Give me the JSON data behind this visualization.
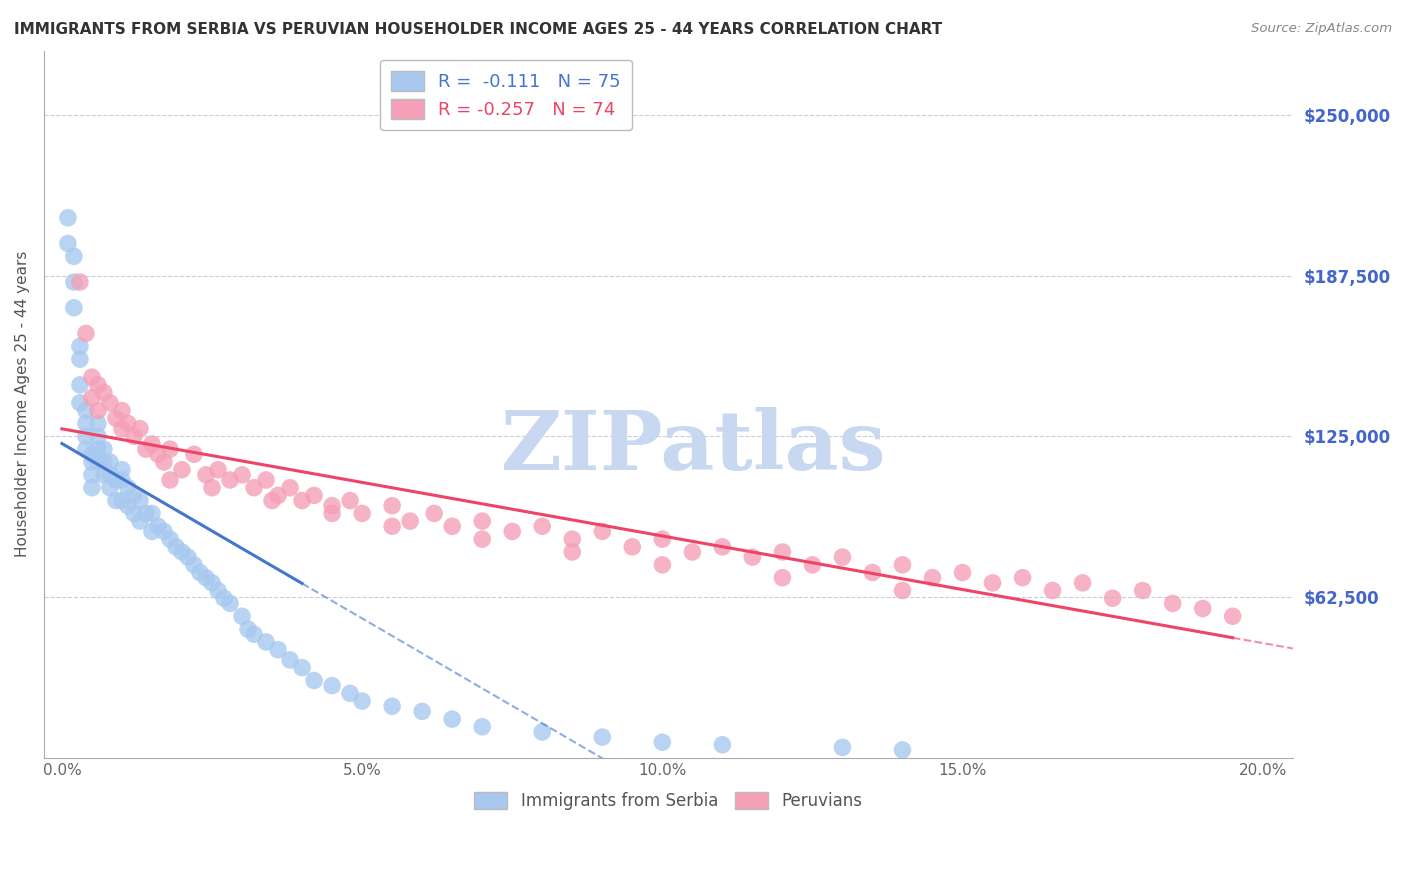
{
  "title": "IMMIGRANTS FROM SERBIA VS PERUVIAN HOUSEHOLDER INCOME AGES 25 - 44 YEARS CORRELATION CHART",
  "source": "Source: ZipAtlas.com",
  "ylabel": "Householder Income Ages 25 - 44 years",
  "xlabel_ticks": [
    "0.0%",
    "5.0%",
    "10.0%",
    "15.0%",
    "20.0%"
  ],
  "xlabel_vals": [
    0.0,
    0.05,
    0.1,
    0.15,
    0.2
  ],
  "ytick_labels": [
    "$62,500",
    "$125,000",
    "$187,500",
    "$250,000"
  ],
  "ytick_vals": [
    62500,
    125000,
    187500,
    250000
  ],
  "ylim": [
    0,
    275000
  ],
  "xlim": [
    -0.003,
    0.205
  ],
  "serbia_color": "#A8C8F0",
  "peru_color": "#F4A0B8",
  "serbia_line_color": "#4477CC",
  "peru_line_color": "#EE4466",
  "legend_box_color_serbia": "#A8C8F0",
  "legend_box_color_peru": "#F4A0B8",
  "r_serbia": -0.111,
  "n_serbia": 75,
  "r_peru": -0.257,
  "n_peru": 74,
  "background_color": "#FFFFFF",
  "grid_color": "#CCCCDD",
  "watermark_text": "ZIPatlas",
  "watermark_color": "#C8D8F0",
  "right_label_color": "#4466CC",
  "serbia_scatter_x": [
    0.001,
    0.001,
    0.002,
    0.002,
    0.002,
    0.003,
    0.003,
    0.003,
    0.003,
    0.004,
    0.004,
    0.004,
    0.004,
    0.005,
    0.005,
    0.005,
    0.005,
    0.006,
    0.006,
    0.006,
    0.006,
    0.007,
    0.007,
    0.007,
    0.008,
    0.008,
    0.008,
    0.009,
    0.009,
    0.01,
    0.01,
    0.01,
    0.011,
    0.011,
    0.012,
    0.012,
    0.013,
    0.013,
    0.014,
    0.015,
    0.015,
    0.016,
    0.017,
    0.018,
    0.019,
    0.02,
    0.021,
    0.022,
    0.023,
    0.024,
    0.025,
    0.026,
    0.027,
    0.028,
    0.03,
    0.031,
    0.032,
    0.034,
    0.036,
    0.038,
    0.04,
    0.042,
    0.045,
    0.048,
    0.05,
    0.055,
    0.06,
    0.065,
    0.07,
    0.08,
    0.09,
    0.1,
    0.11,
    0.13,
    0.14
  ],
  "serbia_scatter_y": [
    210000,
    200000,
    195000,
    185000,
    175000,
    160000,
    155000,
    145000,
    138000,
    135000,
    130000,
    125000,
    120000,
    118000,
    115000,
    110000,
    105000,
    130000,
    125000,
    120000,
    115000,
    120000,
    115000,
    110000,
    115000,
    110000,
    105000,
    108000,
    100000,
    112000,
    108000,
    100000,
    105000,
    98000,
    102000,
    95000,
    100000,
    92000,
    95000,
    95000,
    88000,
    90000,
    88000,
    85000,
    82000,
    80000,
    78000,
    75000,
    72000,
    70000,
    68000,
    65000,
    62000,
    60000,
    55000,
    50000,
    48000,
    45000,
    42000,
    38000,
    35000,
    30000,
    28000,
    25000,
    22000,
    20000,
    18000,
    15000,
    12000,
    10000,
    8000,
    6000,
    5000,
    4000,
    3000
  ],
  "peru_scatter_x": [
    0.003,
    0.004,
    0.005,
    0.005,
    0.006,
    0.006,
    0.007,
    0.008,
    0.009,
    0.01,
    0.01,
    0.011,
    0.012,
    0.013,
    0.014,
    0.015,
    0.016,
    0.017,
    0.018,
    0.02,
    0.022,
    0.024,
    0.026,
    0.028,
    0.03,
    0.032,
    0.034,
    0.036,
    0.038,
    0.04,
    0.042,
    0.045,
    0.048,
    0.05,
    0.055,
    0.058,
    0.062,
    0.065,
    0.07,
    0.075,
    0.08,
    0.085,
    0.09,
    0.095,
    0.1,
    0.105,
    0.11,
    0.115,
    0.12,
    0.125,
    0.13,
    0.135,
    0.14,
    0.145,
    0.15,
    0.155,
    0.16,
    0.165,
    0.17,
    0.175,
    0.18,
    0.185,
    0.19,
    0.195,
    0.018,
    0.025,
    0.035,
    0.045,
    0.055,
    0.07,
    0.085,
    0.1,
    0.12,
    0.14
  ],
  "peru_scatter_y": [
    185000,
    165000,
    148000,
    140000,
    145000,
    135000,
    142000,
    138000,
    132000,
    135000,
    128000,
    130000,
    125000,
    128000,
    120000,
    122000,
    118000,
    115000,
    120000,
    112000,
    118000,
    110000,
    112000,
    108000,
    110000,
    105000,
    108000,
    102000,
    105000,
    100000,
    102000,
    98000,
    100000,
    95000,
    98000,
    92000,
    95000,
    90000,
    92000,
    88000,
    90000,
    85000,
    88000,
    82000,
    85000,
    80000,
    82000,
    78000,
    80000,
    75000,
    78000,
    72000,
    75000,
    70000,
    72000,
    68000,
    70000,
    65000,
    68000,
    62000,
    65000,
    60000,
    58000,
    55000,
    108000,
    105000,
    100000,
    95000,
    90000,
    85000,
    80000,
    75000,
    70000,
    65000
  ]
}
